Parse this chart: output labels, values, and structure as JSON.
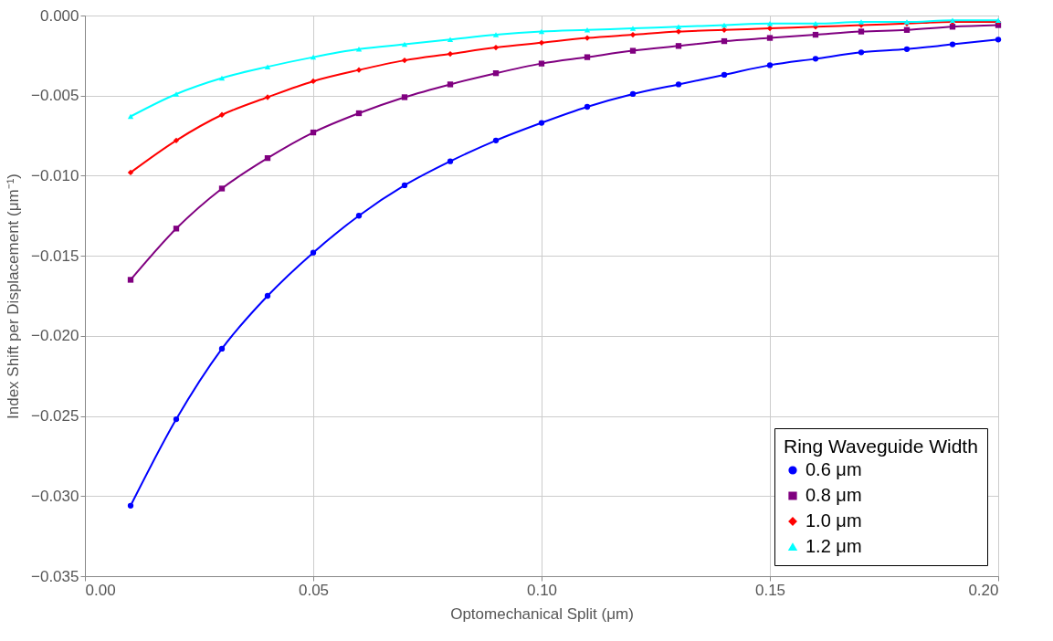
{
  "chart_data": {
    "type": "line",
    "xlabel": "Optomechanical Split (μm)",
    "ylabel": "Index Shift per Displacement (μm⁻¹)",
    "legend_title": "Ring Waveguide Width",
    "x": [
      0.01,
      0.02,
      0.03,
      0.04,
      0.05,
      0.06,
      0.07,
      0.08,
      0.09,
      0.1,
      0.11,
      0.12,
      0.13,
      0.14,
      0.15,
      0.16,
      0.17,
      0.18,
      0.19,
      0.2
    ],
    "series": [
      {
        "name": "0.6 μm",
        "color": "#0000ff",
        "marker": "circle",
        "values": [
          -0.0306,
          -0.0252,
          -0.0208,
          -0.0175,
          -0.0148,
          -0.0125,
          -0.0106,
          -0.0091,
          -0.0078,
          -0.0067,
          -0.0057,
          -0.0049,
          -0.0043,
          -0.0037,
          -0.0031,
          -0.0027,
          -0.0023,
          -0.0021,
          -0.0018,
          -0.0015
        ]
      },
      {
        "name": "0.8 μm",
        "color": "#800080",
        "marker": "square",
        "values": [
          -0.0165,
          -0.0133,
          -0.0108,
          -0.0089,
          -0.0073,
          -0.0061,
          -0.0051,
          -0.0043,
          -0.0036,
          -0.003,
          -0.0026,
          -0.0022,
          -0.0019,
          -0.0016,
          -0.0014,
          -0.0012,
          -0.001,
          -0.0009,
          -0.0007,
          -0.0006
        ]
      },
      {
        "name": "1.0 μm",
        "color": "#ff0000",
        "marker": "diamond",
        "values": [
          -0.0098,
          -0.0078,
          -0.0062,
          -0.0051,
          -0.0041,
          -0.0034,
          -0.0028,
          -0.0024,
          -0.002,
          -0.0017,
          -0.0014,
          -0.0012,
          -0.001,
          -0.0009,
          -0.0008,
          -0.0007,
          -0.0006,
          -0.0005,
          -0.0004,
          -0.0004
        ]
      },
      {
        "name": "1.2 μm",
        "color": "#00ffff",
        "marker": "triangle",
        "values": [
          -0.0063,
          -0.0049,
          -0.0039,
          -0.0032,
          -0.0026,
          -0.0021,
          -0.0018,
          -0.0015,
          -0.0012,
          -0.001,
          -0.0009,
          -0.0008,
          -0.0007,
          -0.0006,
          -0.0005,
          -0.0005,
          -0.0004,
          -0.0004,
          -0.0003,
          -0.0003
        ]
      }
    ],
    "xlim": [
      0,
      0.2
    ],
    "xticks": [
      {
        "value": 0,
        "label": "0.00"
      },
      {
        "value": 0.05,
        "label": "0.05"
      },
      {
        "value": 0.1,
        "label": "0.10"
      },
      {
        "value": 0.15,
        "label": "0.15"
      },
      {
        "value": 0.2,
        "label": "0.20"
      }
    ],
    "ylim": [
      -0.035,
      0
    ],
    "yticks": [
      {
        "value": -0.035,
        "label": "−0.035"
      },
      {
        "value": -0.03,
        "label": "−0.030"
      },
      {
        "value": -0.025,
        "label": "−0.025"
      },
      {
        "value": -0.02,
        "label": "−0.020"
      },
      {
        "value": -0.015,
        "label": "−0.015"
      },
      {
        "value": -0.01,
        "label": "−0.010"
      },
      {
        "value": -0.005,
        "label": "−0.005"
      },
      {
        "value": 0,
        "label": "0.000"
      }
    ],
    "grid": true,
    "legend": "bottom right",
    "line_style": "solid"
  }
}
